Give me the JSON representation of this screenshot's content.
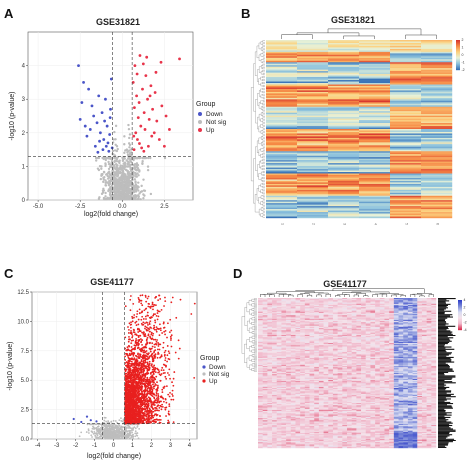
{
  "panels": [
    {
      "letter": "A",
      "kind": "volcano",
      "title": "GSE31821",
      "xlabel": "log2(fold change)",
      "ylabel": "-log10 (p-value)",
      "xlim": [
        -5.6,
        4.2
      ],
      "ylim": [
        0,
        5.0
      ],
      "xticks": [
        -5.0,
        -2.5,
        0.0,
        2.5
      ],
      "xtick_labels": [
        "-5.0",
        "-2.5",
        "0.0",
        "2.5"
      ],
      "yticks": [
        0,
        1,
        2,
        3,
        4
      ],
      "ytick_labels": [
        "0",
        "1",
        "2",
        "3",
        "4"
      ],
      "fc_threshold": [
        -0.585,
        0.585
      ],
      "p_threshold": 1.3,
      "legend": {
        "title": "Group",
        "items": [
          "Down",
          "Not sig",
          "Up"
        ]
      },
      "colors": {
        "down": "#4a55c8",
        "notsig": "#bdbdbd",
        "up": "#e8344a"
      },
      "points": {
        "seed": 11,
        "notsig_count": 900,
        "down": [
          [
            -0.6,
            1.55
          ],
          [
            -0.85,
            1.7
          ],
          [
            -1.1,
            1.8
          ],
          [
            -1.3,
            2.0
          ],
          [
            -1.5,
            2.3
          ],
          [
            -1.8,
            2.8
          ],
          [
            -2.0,
            3.3
          ],
          [
            -2.3,
            3.5
          ],
          [
            -2.6,
            4.0
          ],
          [
            -1.2,
            2.6
          ],
          [
            -0.9,
            2.2
          ],
          [
            -0.75,
            1.95
          ],
          [
            -1.6,
            1.6
          ],
          [
            -2.1,
            1.9
          ],
          [
            -2.5,
            2.4
          ],
          [
            -0.7,
            2.7
          ],
          [
            -1.0,
            3.0
          ],
          [
            -1.4,
            3.1
          ],
          [
            -0.65,
            3.6
          ],
          [
            -1.9,
            2.1
          ],
          [
            -0.8,
            1.45
          ],
          [
            -1.15,
            1.5
          ],
          [
            -1.7,
            2.5
          ],
          [
            -2.4,
            2.9
          ],
          [
            -1.05,
            2.35
          ],
          [
            -0.95,
            1.6
          ],
          [
            -1.35,
            1.75
          ],
          [
            -0.72,
            2.45
          ],
          [
            -2.2,
            2.2
          ],
          [
            -1.45,
            1.42
          ]
        ],
        "up": [
          [
            0.7,
            1.5
          ],
          [
            0.9,
            1.8
          ],
          [
            1.1,
            2.2
          ],
          [
            1.3,
            2.6
          ],
          [
            1.5,
            3.0
          ],
          [
            1.7,
            3.4
          ],
          [
            2.0,
            3.8
          ],
          [
            2.3,
            4.1
          ],
          [
            3.4,
            4.2
          ],
          [
            0.8,
            2.0
          ],
          [
            1.0,
            2.9
          ],
          [
            1.2,
            3.3
          ],
          [
            1.4,
            3.7
          ],
          [
            1.6,
            2.4
          ],
          [
            1.9,
            2.0
          ],
          [
            2.2,
            1.8
          ],
          [
            2.6,
            2.5
          ],
          [
            0.75,
            4.0
          ],
          [
            1.05,
            4.3
          ],
          [
            1.25,
            4.05
          ],
          [
            0.65,
            3.5
          ],
          [
            0.85,
            3.1
          ],
          [
            1.55,
            1.6
          ],
          [
            1.8,
            2.7
          ],
          [
            2.5,
            1.6
          ],
          [
            1.15,
            1.55
          ],
          [
            0.95,
            2.45
          ],
          [
            1.35,
            2.1
          ],
          [
            1.65,
            3.1
          ],
          [
            2.05,
            2.35
          ],
          [
            0.72,
            2.75
          ],
          [
            1.45,
            4.25
          ],
          [
            0.88,
            3.75
          ],
          [
            1.75,
            1.9
          ],
          [
            2.35,
            2.8
          ],
          [
            1.02,
            1.68
          ],
          [
            0.68,
            1.9
          ],
          [
            1.28,
            1.45
          ],
          [
            2.8,
            2.1
          ],
          [
            1.95,
            3.2
          ]
        ]
      }
    },
    {
      "letter": "B",
      "kind": "heatmap",
      "title": "GSE31821",
      "columns": 6,
      "rows": 120,
      "col_labels": [
        "1",
        "2",
        "3",
        "4",
        "5",
        "6"
      ],
      "scale_ticks": [
        "2",
        "1",
        "0",
        "-1",
        "-2"
      ],
      "palette": [
        "#3a74b8",
        "#8cc2dd",
        "#e7f1d7",
        "#fcd27f",
        "#f68a45",
        "#d8382f"
      ],
      "seed": 23
    },
    {
      "letter": "C",
      "kind": "volcano",
      "title": "GSE41177",
      "xlabel": "log2(fold change)",
      "ylabel": "-log10 (p-value)",
      "xlim": [
        -4.3,
        4.4
      ],
      "ylim": [
        0,
        12.5
      ],
      "xticks": [
        -4,
        -3,
        -2,
        -1,
        0,
        1,
        2,
        3,
        4
      ],
      "xtick_labels": [
        "-4",
        "-3",
        "-2",
        "-1",
        "0",
        "1",
        "2",
        "3",
        "4"
      ],
      "yticks": [
        0,
        2.5,
        5.0,
        7.5,
        10.0,
        12.5
      ],
      "ytick_labels": [
        "0.0",
        "2.5",
        "5.0",
        "7.5",
        "10.0",
        "12.5"
      ],
      "fc_threshold": [
        -0.585,
        0.585
      ],
      "p_threshold": 1.3,
      "legend": {
        "title": "Group",
        "items": [
          "Down",
          "Not sig",
          "Up"
        ]
      },
      "colors": {
        "down": "#4a55c8",
        "notsig": "#bdbdbd",
        "up": "#e8201f"
      },
      "points": {
        "seed": 37,
        "notsig_count": 700,
        "up_count": 2600,
        "down": [
          [
            -1.2,
            1.6
          ],
          [
            -1.4,
            1.9
          ],
          [
            -0.9,
            1.5
          ],
          [
            -2.1,
            1.7
          ],
          [
            -1.7,
            1.45
          ]
        ]
      }
    },
    {
      "letter": "D",
      "kind": "heatmap",
      "title": "GSE41177",
      "columns": 38,
      "rows": 130,
      "scale_ticks": [
        "4",
        "2",
        "0",
        "-2",
        "-4"
      ],
      "palette": [
        "#2f3fc8",
        "#7c8ad8",
        "#d8dcf2",
        "#f4e2ea",
        "#f1b8cb",
        "#d83050"
      ],
      "seed": 59
    }
  ]
}
